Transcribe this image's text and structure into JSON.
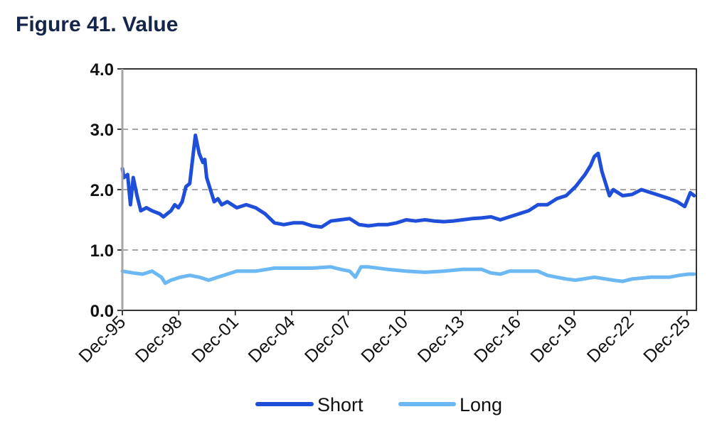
{
  "figure_title": "Figure 41. Value",
  "colors": {
    "short": "#1f4fd8",
    "long": "#6cb8f2",
    "grid": "#a6a6a6",
    "axis": "#000000"
  },
  "chart_data": {
    "type": "line",
    "title": "Figure 41. Value",
    "xlabel": "",
    "ylabel": "",
    "ylim": [
      0,
      4
    ],
    "yticks": [
      "0.0",
      "1.0",
      "2.0",
      "3.0",
      "4.0"
    ],
    "xlim": [
      1995.92,
      2026.42
    ],
    "xtick_labels": [
      "Dec-95",
      "Dec-98",
      "Dec-01",
      "Dec-04",
      "Dec-07",
      "Dec-10",
      "Dec-13",
      "Dec-16",
      "Dec-19",
      "Dec-22",
      "Dec-25"
    ],
    "grid": "horizontal dashed",
    "legend": "bottom",
    "series": [
      {
        "name": "Short",
        "x": [
          1995.92,
          1996.0,
          1996.2,
          1996.35,
          1996.5,
          1996.7,
          1996.9,
          1997.2,
          1997.5,
          1997.9,
          1998.1,
          1998.3,
          1998.5,
          1998.7,
          1998.9,
          1999.1,
          1999.3,
          1999.5,
          1999.8,
          2000.0,
          2000.2,
          2000.3,
          2000.4,
          2000.6,
          2000.8,
          2001.0,
          2001.2,
          2001.5,
          2002.0,
          2002.5,
          2003.0,
          2003.5,
          2004.0,
          2004.5,
          2005.0,
          2005.5,
          2006.0,
          2006.5,
          2007.0,
          2007.5,
          2008.0,
          2008.5,
          2009.0,
          2009.5,
          2010.0,
          2010.5,
          2011.0,
          2011.5,
          2012.0,
          2012.5,
          2013.0,
          2013.5,
          2014.0,
          2014.5,
          2015.0,
          2015.5,
          2016.0,
          2016.5,
          2017.0,
          2017.5,
          2018.0,
          2018.5,
          2019.0,
          2019.5,
          2020.0,
          2020.5,
          2020.8,
          2021.0,
          2021.2,
          2021.4,
          2021.6,
          2021.8,
          2022.0,
          2022.5,
          2023.0,
          2023.5,
          2024.0,
          2024.5,
          2025.0,
          2025.4,
          2025.8,
          2026.1,
          2026.3
        ],
        "values": [
          2.35,
          2.2,
          2.25,
          1.75,
          2.2,
          1.9,
          1.65,
          1.7,
          1.65,
          1.6,
          1.55,
          1.6,
          1.65,
          1.75,
          1.7,
          1.8,
          2.05,
          2.1,
          2.9,
          2.6,
          2.45,
          2.5,
          2.2,
          2.0,
          1.8,
          1.85,
          1.75,
          1.8,
          1.7,
          1.75,
          1.7,
          1.6,
          1.45,
          1.42,
          1.45,
          1.45,
          1.4,
          1.38,
          1.48,
          1.5,
          1.52,
          1.42,
          1.4,
          1.42,
          1.42,
          1.45,
          1.5,
          1.48,
          1.5,
          1.48,
          1.47,
          1.48,
          1.5,
          1.52,
          1.53,
          1.55,
          1.5,
          1.55,
          1.6,
          1.65,
          1.75,
          1.75,
          1.85,
          1.9,
          2.05,
          2.25,
          2.4,
          2.55,
          2.6,
          2.3,
          2.1,
          1.9,
          2.0,
          1.9,
          1.92,
          2.0,
          1.95,
          1.9,
          1.85,
          1.8,
          1.72,
          1.95,
          1.9
        ]
      },
      {
        "name": "Long",
        "x": [
          1995.92,
          1996.5,
          1997.0,
          1997.5,
          1998.0,
          1998.2,
          1998.5,
          1999.0,
          1999.5,
          2000.0,
          2000.5,
          2001.0,
          2002.0,
          2003.0,
          2004.0,
          2005.0,
          2006.0,
          2007.0,
          2007.5,
          2008.0,
          2008.3,
          2008.6,
          2009.0,
          2010.0,
          2011.0,
          2012.0,
          2013.0,
          2014.0,
          2015.0,
          2015.5,
          2016.0,
          2016.5,
          2017.0,
          2018.0,
          2018.5,
          2019.0,
          2019.5,
          2020.0,
          2021.0,
          2022.0,
          2022.5,
          2023.0,
          2024.0,
          2025.0,
          2025.5,
          2026.0,
          2026.3
        ],
        "values": [
          0.65,
          0.62,
          0.6,
          0.65,
          0.55,
          0.45,
          0.5,
          0.55,
          0.58,
          0.55,
          0.5,
          0.55,
          0.65,
          0.65,
          0.7,
          0.7,
          0.7,
          0.72,
          0.68,
          0.65,
          0.55,
          0.72,
          0.72,
          0.68,
          0.65,
          0.63,
          0.65,
          0.68,
          0.68,
          0.62,
          0.6,
          0.65,
          0.65,
          0.65,
          0.58,
          0.55,
          0.52,
          0.5,
          0.55,
          0.5,
          0.48,
          0.52,
          0.55,
          0.55,
          0.58,
          0.6,
          0.6
        ]
      }
    ]
  }
}
